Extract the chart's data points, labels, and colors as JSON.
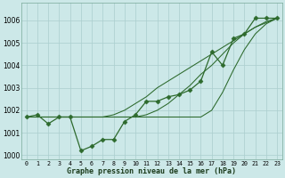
{
  "x": [
    0,
    1,
    2,
    3,
    4,
    5,
    6,
    7,
    8,
    9,
    10,
    11,
    12,
    13,
    14,
    15,
    16,
    17,
    18,
    19,
    20,
    21,
    22,
    23
  ],
  "y_main": [
    1001.7,
    1001.8,
    1001.4,
    1001.7,
    1001.7,
    1000.2,
    1000.4,
    1000.7,
    1000.7,
    1001.5,
    1001.8,
    1002.4,
    1002.4,
    1002.6,
    1002.7,
    1002.9,
    1003.3,
    1004.6,
    1004.0,
    1005.2,
    1005.4,
    1006.1,
    1006.1,
    1006.1
  ],
  "y_line1": [
    1001.7,
    1001.7,
    1001.7,
    1001.7,
    1001.7,
    1001.7,
    1001.7,
    1001.7,
    1001.7,
    1001.7,
    1001.7,
    1001.7,
    1001.7,
    1001.7,
    1001.7,
    1001.7,
    1001.7,
    1002.0,
    1002.8,
    1003.8,
    1004.7,
    1005.4,
    1005.85,
    1006.1
  ],
  "y_line2": [
    1001.7,
    1001.7,
    1001.7,
    1001.7,
    1001.7,
    1001.7,
    1001.7,
    1001.7,
    1001.7,
    1001.7,
    1001.7,
    1001.8,
    1002.0,
    1002.3,
    1002.7,
    1003.1,
    1003.6,
    1004.0,
    1004.5,
    1005.0,
    1005.4,
    1005.7,
    1005.95,
    1006.1
  ],
  "y_line3": [
    1001.7,
    1001.7,
    1001.7,
    1001.7,
    1001.7,
    1001.7,
    1001.7,
    1001.7,
    1001.8,
    1002.0,
    1002.3,
    1002.6,
    1003.0,
    1003.3,
    1003.6,
    1003.9,
    1004.2,
    1004.5,
    1004.8,
    1005.1,
    1005.4,
    1005.7,
    1005.9,
    1006.1
  ],
  "ylim": [
    999.8,
    1006.8
  ],
  "yticks": [
    1000,
    1001,
    1002,
    1003,
    1004,
    1005,
    1006
  ],
  "xlim": [
    -0.5,
    23.5
  ],
  "xticks": [
    0,
    1,
    2,
    3,
    4,
    5,
    6,
    7,
    8,
    9,
    10,
    11,
    12,
    13,
    14,
    15,
    16,
    17,
    18,
    19,
    20,
    21,
    22,
    23
  ],
  "xlabel": "Graphe pression niveau de la mer (hPa)",
  "line_color": "#2d6a2d",
  "bg_color": "#cce8e8",
  "grid_color": "#aacece",
  "marker": "D",
  "markersize": 2.5,
  "linewidth": 0.9
}
